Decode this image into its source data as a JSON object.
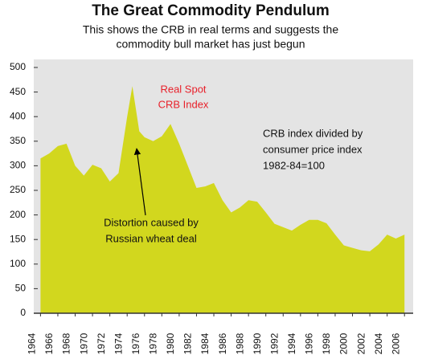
{
  "chart_data": {
    "type": "area",
    "title": "The Great Commodity Pendulum",
    "subtitle": [
      "This shows the CRB in real terms and suggests the",
      "commodity bull market has just begun"
    ],
    "x": [
      1964,
      1965,
      1966,
      1967,
      1968,
      1969,
      1970,
      1971,
      1972,
      1973,
      1974,
      1974.6,
      1975.4,
      1976,
      1977,
      1978,
      1979,
      1980,
      1981,
      1982,
      1983,
      1984,
      1985,
      1986,
      1987,
      1988,
      1989,
      1990,
      1991,
      1992,
      1993,
      1994,
      1995,
      1996,
      1997,
      1998,
      1999,
      2000,
      2001,
      2002,
      2003,
      2004,
      2005,
      2006
    ],
    "values": [
      315,
      325,
      340,
      345,
      300,
      280,
      302,
      295,
      268,
      285,
      400,
      462,
      370,
      358,
      350,
      360,
      385,
      345,
      300,
      255,
      258,
      265,
      230,
      205,
      215,
      230,
      227,
      205,
      182,
      175,
      168,
      180,
      190,
      190,
      183,
      160,
      138,
      133,
      128,
      126,
      140,
      160,
      152,
      160
    ],
    "color": "#d2d71e",
    "background": "#e4e4e4",
    "xlim": [
      1963.5,
      2007
    ],
    "xticks": [
      1964,
      1966,
      1968,
      1970,
      1972,
      1974,
      1976,
      1978,
      1980,
      1982,
      1984,
      1986,
      1988,
      1990,
      1992,
      1994,
      1996,
      1998,
      2000,
      2002,
      2004,
      2006
    ],
    "ylim": [
      0,
      500
    ],
    "yticks": [
      0,
      50,
      100,
      150,
      200,
      250,
      300,
      350,
      400,
      450,
      500
    ],
    "annotations": [
      {
        "text": [
          "Real Spot",
          "CRB Index"
        ],
        "color": "#e8202a"
      },
      {
        "text": [
          "CRB index divided by",
          "consumer price index",
          "1982-84=100"
        ],
        "color": "#111111"
      },
      {
        "text": [
          "Distortion caused by",
          "Russian wheat deal"
        ],
        "color": "#111111"
      }
    ]
  }
}
